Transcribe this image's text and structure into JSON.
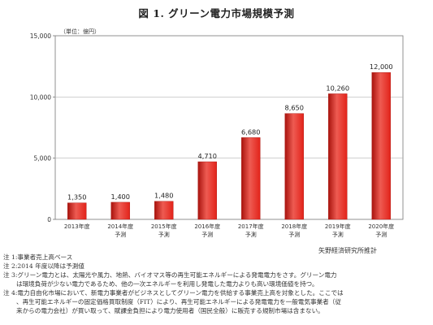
{
  "title": "図 1. グリーン電力市場規模予測",
  "source": "矢野経済研究所推計",
  "chart_data": {
    "type": "bar",
    "unit_label": "（単位：億円）",
    "categories": [
      [
        "2013年度"
      ],
      [
        "2014年度",
        "予測"
      ],
      [
        "2015年度",
        "予測"
      ],
      [
        "2016年度",
        "予測"
      ],
      [
        "2017年度",
        "予測"
      ],
      [
        "2018年度",
        "予測"
      ],
      [
        "2019年度",
        "予測"
      ],
      [
        "2020年度",
        "予測"
      ]
    ],
    "values": [
      1350,
      1400,
      1480,
      4710,
      6680,
      8650,
      10260,
      12000
    ],
    "value_labels": [
      "1,350",
      "1,400",
      "1,480",
      "4,710",
      "6,680",
      "8,650",
      "10,260",
      "12,000"
    ],
    "yticks": [
      0,
      5000,
      10000,
      15000
    ],
    "ytick_labels": [
      "0",
      "5,000",
      "10,000",
      "15,000"
    ],
    "ylim": [
      0,
      15000
    ],
    "grid": true,
    "bar_color": "#e2231a",
    "bar_color_light": "#ee5b52",
    "bar_color_dark": "#a8130d"
  },
  "notes": [
    "注 1:事業者売上高ベース",
    "注 2:2014 年度以降は予測値",
    "注 3:グリーン電力とは、太陽光や風力、地熱、バイオマス等の再生可能エネルギーによる発電電力をさす。グリーン電力",
    "は環境負荷が少ない電力であるため、他の一次エネルギーを利用し発電した電力よりも高い環境価値を持つ。",
    "注 4:電力自由化市場において、新電力事業者がビジネスとしてグリーン電力を供給する事業売上高を対象とした。ここでは",
    "、再生可能エネルギーの固定価格買取制度（FIT）により、再生可能エネルギーによる発電電力を一般電気事業者（従",
    "来からの電力会社）が買い取って、賦課金負担により電力使用者（国民全般）に販売する規制市場は含まない。"
  ]
}
